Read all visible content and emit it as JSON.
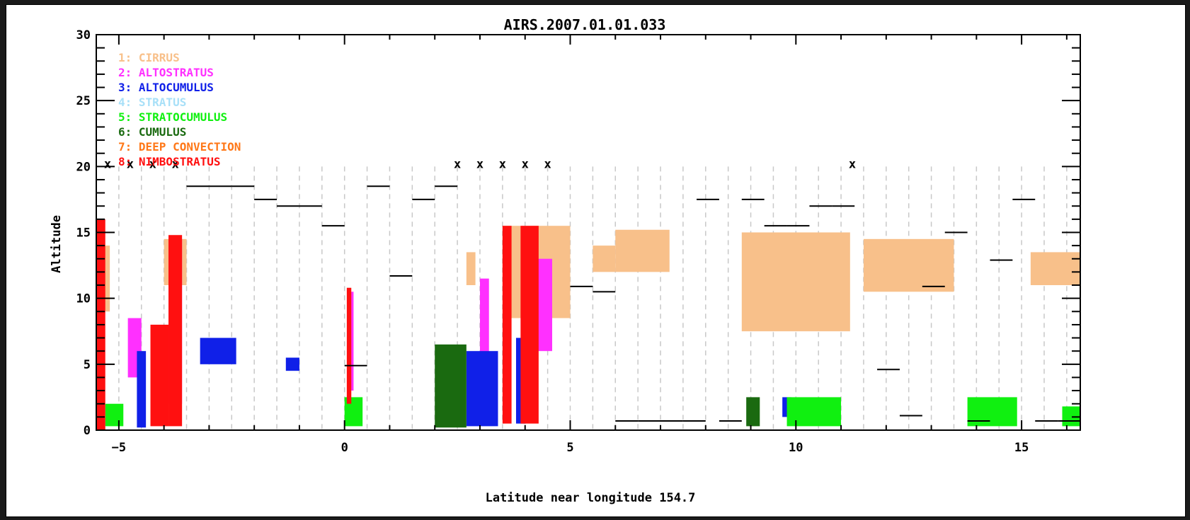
{
  "chart_data": {
    "type": "scatter",
    "title": "AIRS.2007.01.01.033",
    "xlabel": "Latitude near longitude  154.7",
    "ylabel": "Altitude",
    "xlim": [
      -5.5,
      16.3
    ],
    "ylim": [
      0,
      30
    ],
    "x_ticks": [
      -5,
      0,
      5,
      10,
      15
    ],
    "y_ticks": [
      0,
      5,
      10,
      15,
      20,
      25,
      30
    ],
    "grid": "vertical dashed lines at footprint boundaries",
    "legend_position": "top-left",
    "legend": [
      {
        "id": "1",
        "label": "1: CIRRUS",
        "color": "#f8c08a"
      },
      {
        "id": "2",
        "label": "2: ALTOSTRATUS",
        "color": "#ff30ff"
      },
      {
        "id": "3",
        "label": "3: ALTOCUMULUS",
        "color": "#1020e8"
      },
      {
        "id": "4",
        "label": "4: STRATUS",
        "color": "#a8e0f8"
      },
      {
        "id": "5",
        "label": "5: STRATOCUMULUS",
        "color": "#10f010"
      },
      {
        "id": "6",
        "label": "6: CUMULUS",
        "color": "#1a6a10"
      },
      {
        "id": "7",
        "label": "7: DEEP CONVECTION",
        "color": "#ff7818"
      },
      {
        "id": "8",
        "label": "8: NIMBOSTRATUS",
        "color": "#ff1010"
      }
    ],
    "footprint_boundaries": [
      -5.0,
      -4.5,
      -4.0,
      -3.5,
      -3.0,
      -2.5,
      -2.0,
      -1.5,
      -1.0,
      -0.5,
      0.0,
      0.5,
      1.0,
      1.5,
      2.0,
      2.5,
      3.0,
      3.5,
      4.0,
      4.5,
      5.0,
      5.5,
      6.0,
      6.5,
      7.0,
      7.5,
      8.0,
      8.5,
      9.0,
      9.5,
      10.0,
      10.5,
      11.0,
      11.5,
      12.0,
      12.5,
      13.0,
      13.5,
      14.0,
      14.5,
      15.0,
      15.5,
      16.0
    ],
    "x_markers": {
      "label": "x",
      "altitude": 20.2,
      "x": [
        -5.25,
        -4.75,
        -4.25,
        -3.75,
        2.5,
        3.0,
        3.5,
        4.0,
        4.5,
        11.25
      ]
    },
    "cloud_top_segments": [
      {
        "x0": -3.5,
        "x1": -3.0,
        "y": 18.5
      },
      {
        "x0": -3.0,
        "x1": -2.5,
        "y": 18.5
      },
      {
        "x0": -2.5,
        "x1": -2.0,
        "y": 18.5
      },
      {
        "x0": -2.0,
        "x1": -1.5,
        "y": 17.5
      },
      {
        "x0": -1.5,
        "x1": -1.0,
        "y": 17.0
      },
      {
        "x0": -1.0,
        "x1": -0.5,
        "y": 17.0
      },
      {
        "x0": -0.5,
        "x1": 0.0,
        "y": 15.5
      },
      {
        "x0": 0.0,
        "x1": 0.5,
        "y": 4.9
      },
      {
        "x0": 0.5,
        "x1": 1.0,
        "y": 18.5
      },
      {
        "x0": 1.0,
        "x1": 1.5,
        "y": 11.7
      },
      {
        "x0": 1.5,
        "x1": 2.0,
        "y": 17.5
      },
      {
        "x0": 2.0,
        "x1": 2.5,
        "y": 18.5
      },
      {
        "x0": 5.0,
        "x1": 5.5,
        "y": 10.9
      },
      {
        "x0": 5.5,
        "x1": 6.0,
        "y": 10.5
      },
      {
        "x0": 6.0,
        "x1": 6.5,
        "y": 0.7
      },
      {
        "x0": 6.5,
        "x1": 7.0,
        "y": 0.7
      },
      {
        "x0": 7.0,
        "x1": 7.5,
        "y": 0.7
      },
      {
        "x0": 7.5,
        "x1": 8.0,
        "y": 0.7
      },
      {
        "x0": 7.8,
        "x1": 8.3,
        "y": 17.5
      },
      {
        "x0": 8.3,
        "x1": 8.8,
        "y": 0.7
      },
      {
        "x0": 8.8,
        "x1": 9.3,
        "y": 17.5
      },
      {
        "x0": 9.3,
        "x1": 9.8,
        "y": 15.5
      },
      {
        "x0": 9.8,
        "x1": 10.3,
        "y": 15.5
      },
      {
        "x0": 10.3,
        "x1": 10.8,
        "y": 17.0
      },
      {
        "x0": 10.8,
        "x1": 11.3,
        "y": 17.0
      },
      {
        "x0": 11.8,
        "x1": 12.3,
        "y": 4.6
      },
      {
        "x0": 12.3,
        "x1": 12.8,
        "y": 1.1
      },
      {
        "x0": 12.8,
        "x1": 13.3,
        "y": 10.9
      },
      {
        "x0": 13.3,
        "x1": 13.8,
        "y": 15.0
      },
      {
        "x0": 13.8,
        "x1": 14.3,
        "y": 0.7
      },
      {
        "x0": 14.3,
        "x1": 14.8,
        "y": 12.9
      },
      {
        "x0": 14.8,
        "x1": 15.3,
        "y": 17.5
      },
      {
        "x0": 15.3,
        "x1": 15.8,
        "y": 0.7
      },
      {
        "x0": 15.8,
        "x1": 16.3,
        "y": 0.7
      }
    ],
    "cloud_regions": [
      {
        "class": "1",
        "x0": -5.5,
        "x1": -5.2,
        "y0": 9.0,
        "y1": 14.0
      },
      {
        "class": "1",
        "x0": -4.0,
        "x1": -3.5,
        "y0": 11.0,
        "y1": 14.5
      },
      {
        "class": "1",
        "x0": 2.7,
        "x1": 2.9,
        "y0": 11.0,
        "y1": 13.5
      },
      {
        "class": "1",
        "x0": 3.5,
        "x1": 5.0,
        "y0": 8.5,
        "y1": 15.5
      },
      {
        "class": "1",
        "x0": 5.5,
        "x1": 6.0,
        "y0": 12.0,
        "y1": 14.0
      },
      {
        "class": "1",
        "x0": 6.0,
        "x1": 7.2,
        "y0": 12.0,
        "y1": 15.2
      },
      {
        "class": "1",
        "x0": 8.8,
        "x1": 11.2,
        "y0": 7.5,
        "y1": 15.0
      },
      {
        "class": "1",
        "x0": 11.5,
        "x1": 13.5,
        "y0": 10.5,
        "y1": 14.5
      },
      {
        "class": "1",
        "x0": 15.2,
        "x1": 16.3,
        "y0": 11.0,
        "y1": 13.5
      },
      {
        "class": "2",
        "x0": -4.8,
        "x1": -4.5,
        "y0": 4.0,
        "y1": 8.5
      },
      {
        "class": "2",
        "x0": -3.9,
        "x1": -3.6,
        "y0": 2.0,
        "y1": 14.5
      },
      {
        "class": "2",
        "x0": 0.1,
        "x1": 0.2,
        "y0": 3.0,
        "y1": 10.5
      },
      {
        "class": "2",
        "x0": 3.0,
        "x1": 3.2,
        "y0": 3.0,
        "y1": 11.5
      },
      {
        "class": "2",
        "x0": 4.2,
        "x1": 4.6,
        "y0": 6.0,
        "y1": 13.0
      },
      {
        "class": "3",
        "x0": -4.6,
        "x1": -4.4,
        "y0": 0.2,
        "y1": 6.0
      },
      {
        "class": "3",
        "x0": -3.2,
        "x1": -2.4,
        "y0": 5.0,
        "y1": 7.0
      },
      {
        "class": "3",
        "x0": -1.3,
        "x1": -1.0,
        "y0": 4.5,
        "y1": 5.5
      },
      {
        "class": "3",
        "x0": 2.7,
        "x1": 3.4,
        "y0": 0.3,
        "y1": 6.0
      },
      {
        "class": "3",
        "x0": 3.8,
        "x1": 4.0,
        "y0": 0.5,
        "y1": 7.0
      },
      {
        "class": "3",
        "x0": 9.7,
        "x1": 9.9,
        "y0": 1.0,
        "y1": 2.5
      },
      {
        "class": "5",
        "x0": -5.3,
        "x1": -4.9,
        "y0": 0.3,
        "y1": 2.0
      },
      {
        "class": "5",
        "x0": 0.0,
        "x1": 0.4,
        "y0": 0.3,
        "y1": 2.5
      },
      {
        "class": "5",
        "x0": 9.8,
        "x1": 11.0,
        "y0": 0.3,
        "y1": 2.5
      },
      {
        "class": "5",
        "x0": 13.8,
        "x1": 14.9,
        "y0": 0.3,
        "y1": 2.5
      },
      {
        "class": "5",
        "x0": 15.9,
        "x1": 16.3,
        "y0": 0.3,
        "y1": 1.8
      },
      {
        "class": "6",
        "x0": 2.0,
        "x1": 2.7,
        "y0": 0.2,
        "y1": 6.5
      },
      {
        "class": "6",
        "x0": 8.9,
        "x1": 9.2,
        "y0": 0.3,
        "y1": 2.5
      },
      {
        "class": "8",
        "x0": -5.5,
        "x1": -5.3,
        "y0": 0.0,
        "y1": 16.0
      },
      {
        "class": "8",
        "x0": -4.3,
        "x1": -3.9,
        "y0": 0.3,
        "y1": 8.0
      },
      {
        "class": "8",
        "x0": -3.9,
        "x1": -3.6,
        "y0": 0.3,
        "y1": 14.8
      },
      {
        "class": "8",
        "x0": 0.05,
        "x1": 0.15,
        "y0": 2.0,
        "y1": 10.8
      },
      {
        "class": "8",
        "x0": 3.5,
        "x1": 3.7,
        "y0": 0.5,
        "y1": 15.5
      },
      {
        "class": "8",
        "x0": 3.9,
        "x1": 4.3,
        "y0": 0.5,
        "y1": 15.5
      }
    ]
  }
}
